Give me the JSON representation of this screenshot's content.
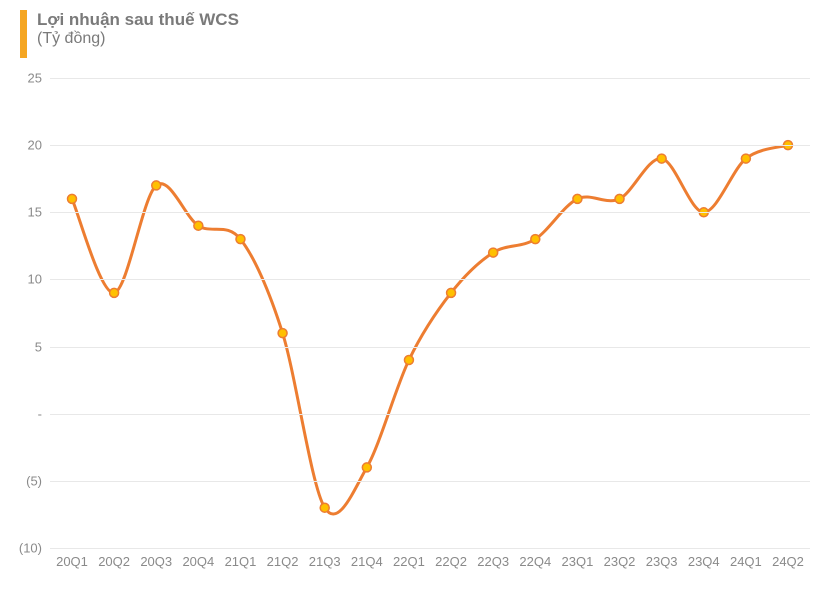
{
  "chart": {
    "type": "line",
    "title": "Lợi nhuận sau thuế WCS",
    "subtitle": "(Tỷ đồng)",
    "title_color": "#7a7a7a",
    "title_fontsize": 17,
    "subtitle_fontsize": 16,
    "accent_bar_color": "#f5a623",
    "background_color": "#ffffff",
    "grid_color": "#e8e8e8",
    "axis_label_color": "#8a8a8a",
    "axis_label_fontsize": 13,
    "line_color": "#ed7d31",
    "line_width": 3,
    "marker_fill": "#ffc000",
    "marker_stroke": "#ed7d31",
    "marker_stroke_width": 1.5,
    "marker_radius": 4.5,
    "ylim": [
      -10,
      25
    ],
    "ytick_step": 5,
    "yticks": [
      {
        "v": -10,
        "label": "(10)"
      },
      {
        "v": -5,
        "label": "(5)"
      },
      {
        "v": 0,
        "label": "-"
      },
      {
        "v": 5,
        "label": "5"
      },
      {
        "v": 10,
        "label": "10"
      },
      {
        "v": 15,
        "label": "15"
      },
      {
        "v": 20,
        "label": "20"
      },
      {
        "v": 25,
        "label": "25"
      }
    ],
    "categories": [
      "20Q1",
      "20Q2",
      "20Q3",
      "20Q4",
      "21Q1",
      "21Q2",
      "21Q3",
      "21Q4",
      "22Q1",
      "22Q2",
      "22Q3",
      "22Q4",
      "23Q1",
      "23Q2",
      "23Q3",
      "23Q4",
      "24Q1",
      "24Q2"
    ],
    "values": [
      16,
      9,
      17,
      14,
      13,
      6,
      -7,
      -4,
      4,
      9,
      12,
      13,
      16,
      16,
      19,
      15,
      19,
      20
    ],
    "smooth": true
  }
}
